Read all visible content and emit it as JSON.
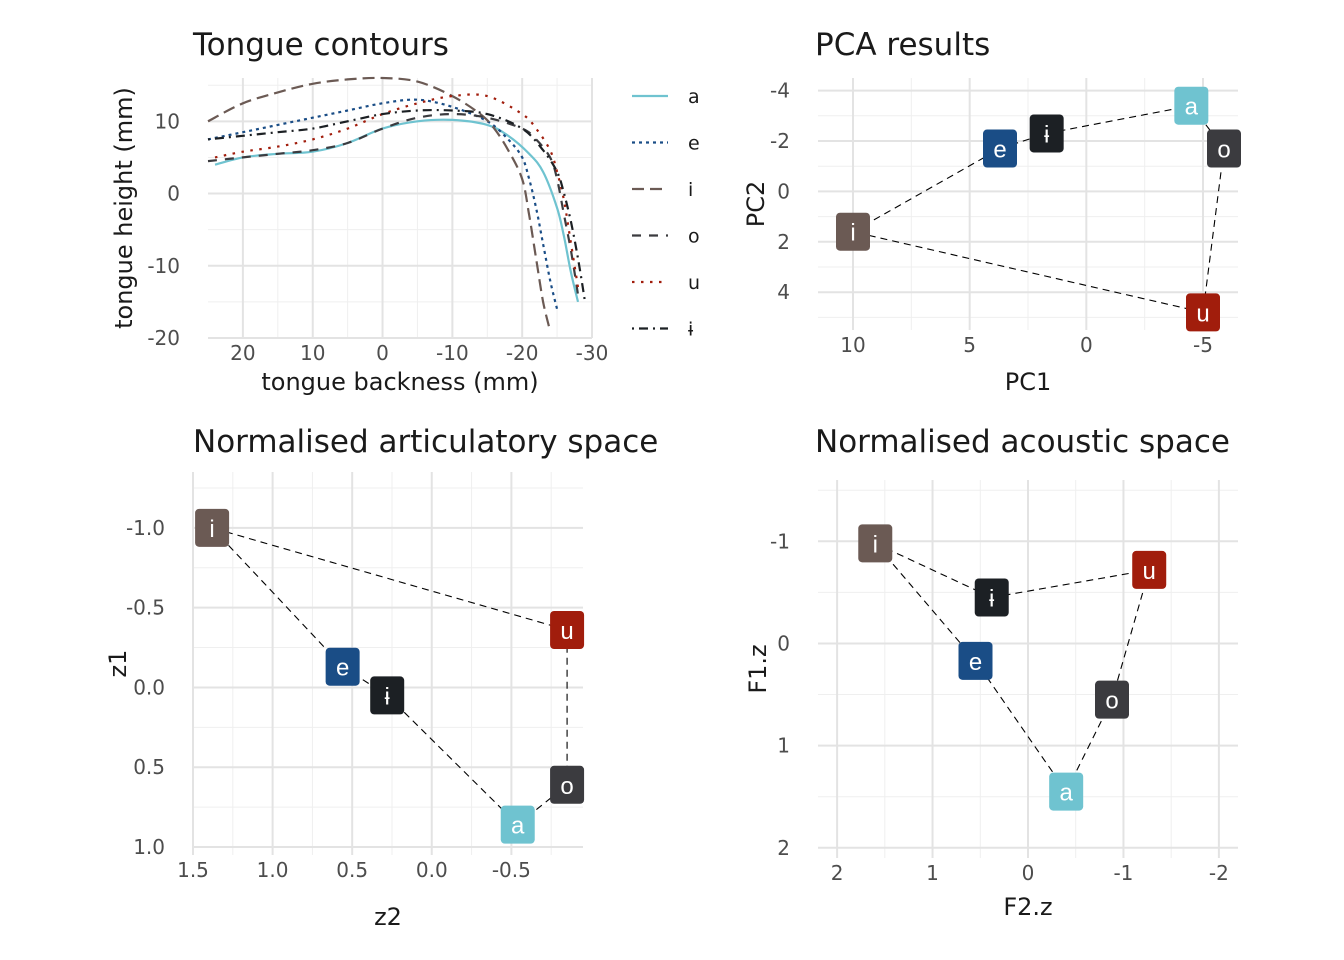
{
  "colors": {
    "a": "#6fc3d0",
    "e": "#1a4d86",
    "i": "#6b5a54",
    "o": "#3b3b3f",
    "u": "#a11d0c",
    "ɨ": "#1c2024"
  },
  "chart_data": [
    {
      "type": "line",
      "title": "Tongue contours",
      "xlabel": "tongue backness (mm)",
      "ylabel": "tongue height (mm)",
      "xlim": [
        25,
        -30
      ],
      "ylim": [
        -20,
        16
      ],
      "x_reversed": true,
      "xticks": [
        20,
        10,
        0,
        -10,
        -20,
        -30
      ],
      "xtick_labels": [
        "20",
        "10",
        "0",
        "-10",
        "-20",
        "-30"
      ],
      "yticks": [
        10,
        0,
        -10,
        -20
      ],
      "ytick_labels": [
        "10",
        "0",
        "-10",
        "-20"
      ],
      "legend_position": "right",
      "series": [
        {
          "name": "a",
          "dash": "solid",
          "x": [
            24,
            20,
            15,
            10,
            5,
            0,
            -5,
            -10,
            -15,
            -18,
            -21,
            -23,
            -25,
            -26,
            -27,
            -28
          ],
          "y": [
            4,
            5,
            5.5,
            5.8,
            7,
            9,
            10,
            10.2,
            9.5,
            8,
            5.5,
            3,
            -2,
            -6,
            -11,
            -15
          ]
        },
        {
          "name": "e",
          "dash": "dotted",
          "x": [
            25,
            20,
            15,
            10,
            5,
            0,
            -5,
            -10,
            -15,
            -18,
            -20,
            -21,
            -22,
            -23,
            -24,
            -25
          ],
          "y": [
            7.5,
            8.5,
            9.5,
            10.5,
            11.5,
            12.5,
            13,
            12,
            10,
            7.5,
            5,
            2,
            -2,
            -7,
            -12,
            -16
          ]
        },
        {
          "name": "i",
          "dash": "dashed-long",
          "x": [
            25,
            20,
            15,
            10,
            5,
            0,
            -5,
            -10,
            -14,
            -16,
            -18,
            -20,
            -21,
            -22,
            -23,
            -24
          ],
          "y": [
            10,
            12.5,
            14,
            15.2,
            15.8,
            16,
            15.5,
            13.5,
            11,
            9,
            6,
            2,
            -3,
            -9,
            -15,
            -19
          ]
        },
        {
          "name": "o",
          "dash": "dashed",
          "x": [
            25,
            20,
            15,
            10,
            5,
            0,
            -5,
            -10,
            -15,
            -20,
            -22,
            -24,
            -25,
            -26,
            -27,
            -28
          ],
          "y": [
            4.5,
            5,
            5.5,
            6,
            7,
            9,
            10.5,
            11,
            10.5,
            9,
            7.5,
            5,
            2,
            -3,
            -8,
            -14
          ]
        },
        {
          "name": "u",
          "dash": "dotted-sparse",
          "x": [
            24,
            20,
            15,
            10,
            5,
            0,
            -5,
            -10,
            -15,
            -20,
            -22,
            -24,
            -25,
            -26,
            -27,
            -28
          ],
          "y": [
            5,
            5.8,
            6.5,
            7.5,
            9,
            11,
            12.5,
            13.5,
            13.5,
            11,
            9,
            6,
            3,
            -1,
            -7,
            -13
          ]
        },
        {
          "name": "ɨ",
          "dash": "dotdash",
          "x": [
            25,
            20,
            15,
            10,
            5,
            0,
            -5,
            -10,
            -15,
            -20,
            -23,
            -25,
            -26,
            -27,
            -28,
            -29
          ],
          "y": [
            7.5,
            8,
            8.5,
            9,
            10,
            11,
            11.5,
            11.5,
            11,
            9,
            6,
            3,
            0,
            -4,
            -9,
            -15
          ]
        }
      ]
    },
    {
      "type": "scatter",
      "title": "PCA results",
      "xlabel": "PC1",
      "ylabel": "PC2",
      "xlim": [
        11.5,
        -6.5
      ],
      "ylim": [
        -4.5,
        5.5
      ],
      "x_reversed": true,
      "y_reversed": true,
      "xticks": [
        10,
        5,
        0,
        -5
      ],
      "xtick_labels": [
        "10",
        "5",
        "0",
        "-5"
      ],
      "yticks": [
        -4,
        -2,
        0,
        2,
        4
      ],
      "ytick_labels": [
        "-4",
        "-2",
        "0",
        "2",
        "4"
      ],
      "points": [
        {
          "label": "a",
          "x": -4.5,
          "y": -3.4
        },
        {
          "label": "e",
          "x": 3.7,
          "y": -1.7
        },
        {
          "label": "i",
          "x": 10.0,
          "y": 1.6
        },
        {
          "label": "o",
          "x": -5.9,
          "y": -1.7
        },
        {
          "label": "u",
          "x": -5.0,
          "y": 4.8
        },
        {
          "label": "ɨ",
          "x": 1.7,
          "y": -2.3
        }
      ],
      "connections": [
        "i-e",
        "e-ɨ",
        "ɨ-a",
        "a-o",
        "o-u",
        "u-i"
      ]
    },
    {
      "type": "scatter",
      "title": "Normalised articulatory space",
      "xlabel": "z2",
      "ylabel": "z1",
      "xlim": [
        1.5,
        -0.95
      ],
      "ylim": [
        -1.35,
        1.05
      ],
      "x_reversed": true,
      "y_reversed": true,
      "xticks": [
        1.5,
        1.0,
        0.5,
        0.0,
        -0.5
      ],
      "xtick_labels": [
        "1.5",
        "1.0",
        "0.5",
        "0.0",
        "-0.5"
      ],
      "yticks": [
        -1.0,
        -0.5,
        0.0,
        0.5,
        1.0
      ],
      "ytick_labels": [
        "-1.0",
        "-0.5",
        "0.0",
        "0.5",
        "1.0"
      ],
      "points": [
        {
          "label": "i",
          "x": 1.38,
          "y": -1.0
        },
        {
          "label": "e",
          "x": 0.56,
          "y": -0.13
        },
        {
          "label": "ɨ",
          "x": 0.28,
          "y": 0.05
        },
        {
          "label": "a",
          "x": -0.54,
          "y": 0.86
        },
        {
          "label": "o",
          "x": -0.85,
          "y": 0.61
        },
        {
          "label": "u",
          "x": -0.85,
          "y": -0.36
        }
      ],
      "connections": [
        "i-e",
        "e-ɨ",
        "ɨ-a",
        "a-o",
        "o-u",
        "u-i"
      ]
    },
    {
      "type": "scatter",
      "title": "Normalised acoustic space",
      "xlabel": "F2.z",
      "ylabel": "F1.z",
      "xlim": [
        2.2,
        -2.2
      ],
      "ylim": [
        -1.6,
        2.1
      ],
      "x_reversed": true,
      "y_reversed": true,
      "xticks": [
        2,
        1,
        0,
        -1,
        -2
      ],
      "xtick_labels": [
        "2",
        "1",
        "0",
        "-1",
        "-2"
      ],
      "yticks": [
        -1,
        0,
        1,
        2
      ],
      "ytick_labels": [
        "-1",
        "0",
        "1",
        "2"
      ],
      "points": [
        {
          "label": "i",
          "x": 1.6,
          "y": -0.98
        },
        {
          "label": "ɨ",
          "x": 0.38,
          "y": -0.45
        },
        {
          "label": "e",
          "x": 0.55,
          "y": 0.17
        },
        {
          "label": "o",
          "x": -0.88,
          "y": 0.55
        },
        {
          "label": "a",
          "x": -0.4,
          "y": 1.45
        },
        {
          "label": "u",
          "x": -1.27,
          "y": -0.72
        }
      ],
      "connections": [
        "i-ɨ",
        "ɨ-u",
        "u-o",
        "o-a",
        "a-e",
        "e-i"
      ]
    }
  ]
}
